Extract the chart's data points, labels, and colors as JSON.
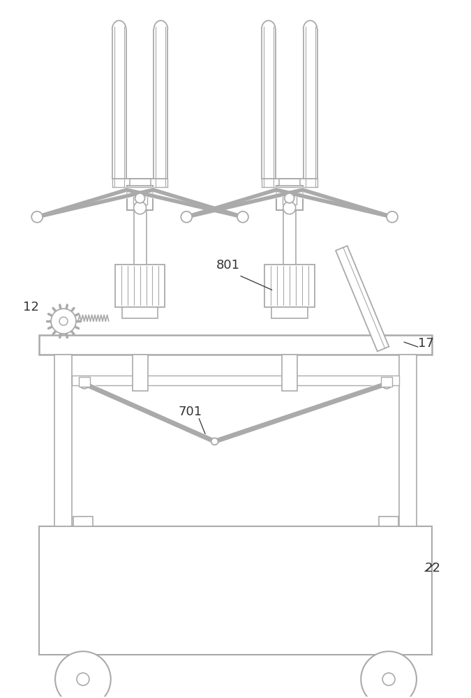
{
  "bg_color": "#ffffff",
  "lc": "#aaaaaa",
  "lc_dark": "#888888",
  "label_color": "#333333",
  "lw_main": 1.5,
  "lw_thin": 1.0,
  "lw_thick": 2.0
}
